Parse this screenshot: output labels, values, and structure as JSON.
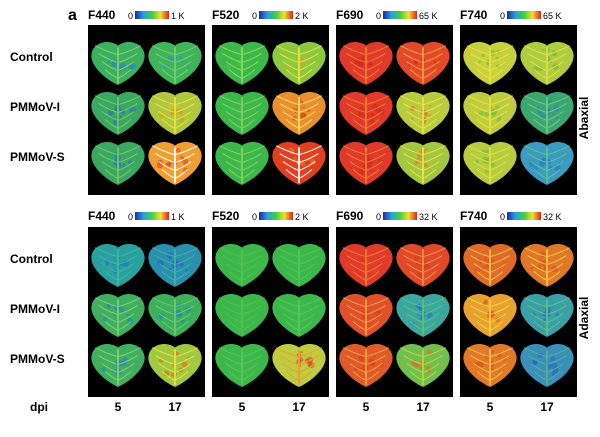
{
  "figure_label": "a",
  "channels": [
    {
      "id": "f440",
      "title": "F440",
      "scale_min": "0",
      "scale_max": "1 K"
    },
    {
      "id": "f520",
      "title": "F520",
      "scale_min": "0",
      "scale_max": "2 K"
    },
    {
      "id": "f690",
      "title": "F690",
      "scale_min": "0",
      "scale_max": "65 K"
    },
    {
      "id": "f740",
      "title": "F740",
      "scale_min": "0",
      "scale_max": "65 K"
    }
  ],
  "channels_adaxial": [
    {
      "id": "f440",
      "title": "F440",
      "scale_min": "0",
      "scale_max": "1 K"
    },
    {
      "id": "f520",
      "title": "F520",
      "scale_min": "0",
      "scale_max": "2 K"
    },
    {
      "id": "f690",
      "title": "F690",
      "scale_min": "0",
      "scale_max": "32 K"
    },
    {
      "id": "f740",
      "title": "F740",
      "scale_min": "0",
      "scale_max": "32 K"
    }
  ],
  "rows": [
    "Control",
    "PMMoV-I",
    "PMMoV-S"
  ],
  "sides": [
    "Abaxial",
    "Adaxial"
  ],
  "dpi_label": "dpi",
  "dpi_values": [
    "5",
    "17"
  ],
  "colors": {
    "panel_bg": "#000000",
    "blue": "#2a5fc8",
    "green": "#3fbf4a",
    "yellow": "#e8e23a",
    "orange": "#f08a2a",
    "red": "#e03a2a",
    "white": "#ffffff"
  }
}
